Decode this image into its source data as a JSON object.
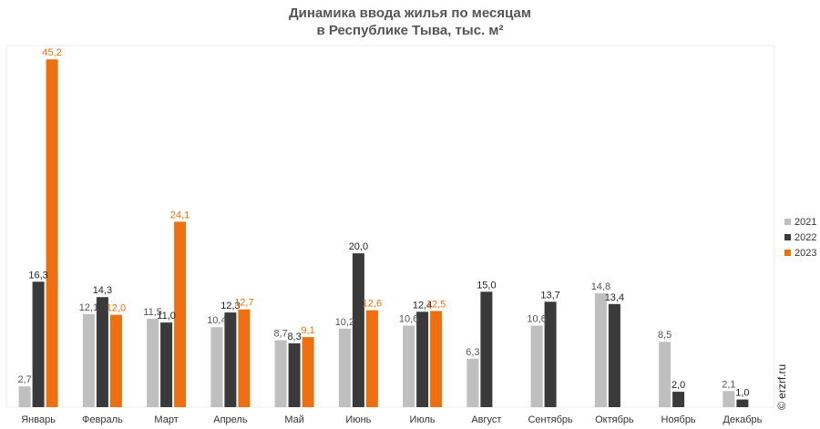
{
  "chart_data": {
    "type": "bar",
    "title_lines": [
      "Динамика ввода жилья по месяцам",
      "в Республике Тыва, тыс. м²"
    ],
    "categories": [
      "Январь",
      "Февраль",
      "Март",
      "Апрель",
      "Май",
      "Июнь",
      "Июль",
      "Август",
      "Сентябрь",
      "Октябрь",
      "Ноябрь",
      "Декабрь"
    ],
    "series": [
      {
        "name": "2021",
        "color": "#bfbfbf",
        "label_color": "#555555",
        "values": [
          2.7,
          12.1,
          11.5,
          10.4,
          8.7,
          10.2,
          10.6,
          6.3,
          10.6,
          14.8,
          8.5,
          2.1
        ],
        "labels": [
          "2,7",
          "12,1",
          "11,5",
          "10,4",
          "8,7",
          "10,2",
          "10,6",
          "6,3",
          "10,6",
          "14,8",
          "8,5",
          "2,1"
        ]
      },
      {
        "name": "2022",
        "color": "#3a3a3a",
        "label_color": "#222222",
        "values": [
          16.3,
          14.3,
          11.0,
          12.3,
          8.3,
          20.0,
          12.4,
          15.0,
          13.7,
          13.4,
          2.0,
          1.0
        ],
        "labels": [
          "16,3",
          "14,3",
          "11,0",
          "12,3",
          "8,3",
          "20,0",
          "12,4",
          "15,0",
          "13,7",
          "13,4",
          "2,0",
          "1,0"
        ]
      },
      {
        "name": "2023",
        "color": "#ee6f0f",
        "label_color": "#ee6f0f",
        "values": [
          45.2,
          12.0,
          24.1,
          12.7,
          9.1,
          12.6,
          12.5,
          null,
          null,
          null,
          null,
          null
        ],
        "labels": [
          "45,2",
          "12,0",
          "24,1",
          "12,7",
          "9,1",
          "12,6",
          "12,5",
          null,
          null,
          null,
          null,
          null
        ]
      }
    ],
    "ylim": [
      0,
      47
    ],
    "grid": false,
    "legend_position": "right"
  },
  "watermark": "© erzrf.ru"
}
